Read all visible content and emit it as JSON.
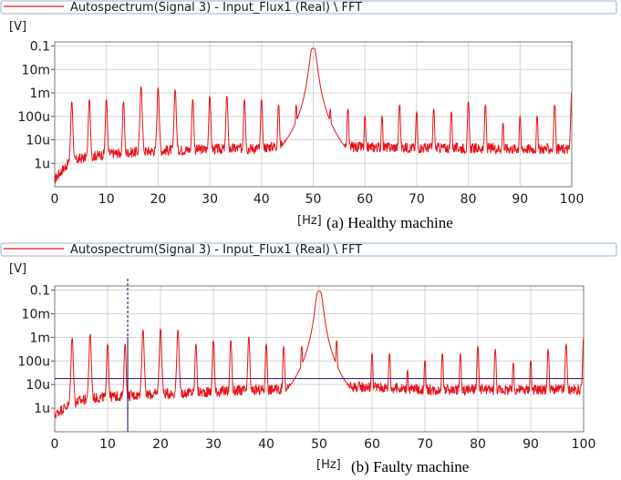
{
  "chart_data": [
    {
      "type": "line",
      "legend": "Autospectrum(Signal 3) - Input_Flux1 (Real) \\ FFT",
      "ylabel": "[V]",
      "xlabel": "[Hz]",
      "caption": "(a) Healthy machine",
      "xlim": [
        0,
        100
      ],
      "ylim": [
        1e-07,
        0.15
      ],
      "yscale": "log",
      "xticks": [
        0,
        10,
        20,
        30,
        40,
        50,
        60,
        70,
        80,
        90,
        100
      ],
      "yticks": [
        {
          "value": 0.1,
          "label": "0.1"
        },
        {
          "value": 0.01,
          "label": "10m"
        },
        {
          "value": 0.001,
          "label": "1m"
        },
        {
          "value": 0.0001,
          "label": "100u"
        },
        {
          "value": 1e-05,
          "label": "10u"
        },
        {
          "value": 1e-06,
          "label": "1u"
        }
      ],
      "grid": true,
      "series": [
        {
          "name": "Autospectrum(Signal 3) - Input_Flux1 (Real) \\ FFT",
          "color": "#e8131b",
          "floor": [
            [
              0,
              2e-07
            ],
            [
              1,
              4e-07
            ],
            [
              3,
              1.2e-06
            ],
            [
              6,
              1.8e-06
            ],
            [
              10,
              2.5e-06
            ],
            [
              20,
              3.5e-06
            ],
            [
              40,
              4.5e-06
            ],
            [
              48,
              8e-06
            ],
            [
              52,
              8e-06
            ],
            [
              55,
              5e-06
            ],
            [
              100,
              4e-06
            ]
          ],
          "peaks": [
            {
              "x": 3.3,
              "y": 0.0004
            },
            {
              "x": 6.7,
              "y": 0.0005
            },
            {
              "x": 10.0,
              "y": 0.0005
            },
            {
              "x": 13.3,
              "y": 0.0004
            },
            {
              "x": 16.7,
              "y": 0.0018
            },
            {
              "x": 20.0,
              "y": 0.0016
            },
            {
              "x": 23.3,
              "y": 0.0013
            },
            {
              "x": 26.7,
              "y": 0.0005
            },
            {
              "x": 30.0,
              "y": 0.0007
            },
            {
              "x": 33.3,
              "y": 0.0007
            },
            {
              "x": 36.7,
              "y": 0.0005
            },
            {
              "x": 40.0,
              "y": 0.0005
            },
            {
              "x": 43.3,
              "y": 0.0003
            },
            {
              "x": 46.7,
              "y": 0.0003
            },
            {
              "x": 50.0,
              "y": 0.08
            },
            {
              "x": 53.3,
              "y": 0.0002
            },
            {
              "x": 56.7,
              "y": 0.0002
            },
            {
              "x": 60.0,
              "y": 0.0001
            },
            {
              "x": 63.3,
              "y": 0.0001
            },
            {
              "x": 66.7,
              "y": 0.0003
            },
            {
              "x": 70.0,
              "y": 0.00015
            },
            {
              "x": 73.3,
              "y": 0.0002
            },
            {
              "x": 76.7,
              "y": 0.00015
            },
            {
              "x": 80.0,
              "y": 0.0004
            },
            {
              "x": 83.3,
              "y": 0.0003
            },
            {
              "x": 86.7,
              "y": 5e-05
            },
            {
              "x": 90.0,
              "y": 0.0001
            },
            {
              "x": 93.3,
              "y": 0.0001
            },
            {
              "x": 96.7,
              "y": 0.0003
            },
            {
              "x": 100.0,
              "y": 0.001
            }
          ]
        }
      ]
    },
    {
      "type": "line",
      "legend": "Autospectrum(Signal 3) - Input_Flux1 (Real) \\ FFT",
      "ylabel": "[V]",
      "xlabel": "[Hz]",
      "caption": "(b) Faulty machine",
      "xlim": [
        0,
        100
      ],
      "ylim": [
        1e-07,
        0.15
      ],
      "yscale": "log",
      "xticks": [
        0,
        10,
        20,
        30,
        40,
        50,
        60,
        70,
        80,
        90,
        100
      ],
      "yticks": [
        {
          "value": 0.1,
          "label": "0.1"
        },
        {
          "value": 0.01,
          "label": "10m"
        },
        {
          "value": 0.001,
          "label": "1m"
        },
        {
          "value": 0.0001,
          "label": "100u"
        },
        {
          "value": 1e-05,
          "label": "10u"
        },
        {
          "value": 1e-06,
          "label": "1u"
        }
      ],
      "grid": true,
      "cursor": {
        "x": 13.8,
        "y": 1.8e-05
      },
      "series": [
        {
          "name": "Autospectrum(Signal 3) - Input_Flux1 (Real) \\ FFT",
          "color": "#e8131b",
          "floor": [
            [
              0,
              5e-07
            ],
            [
              1,
              8e-07
            ],
            [
              3,
              1.5e-06
            ],
            [
              6,
              2.5e-06
            ],
            [
              10,
              3e-06
            ],
            [
              20,
              4e-06
            ],
            [
              30,
              5e-06
            ],
            [
              40,
              6e-06
            ],
            [
              50,
              8e-06
            ],
            [
              60,
              8e-06
            ],
            [
              70,
              6e-06
            ],
            [
              80,
              6e-06
            ],
            [
              100,
              6e-06
            ]
          ],
          "peaks": [
            {
              "x": 3.3,
              "y": 0.0009
            },
            {
              "x": 6.7,
              "y": 0.0013
            },
            {
              "x": 10.0,
              "y": 0.0005
            },
            {
              "x": 13.3,
              "y": 0.0005
            },
            {
              "x": 16.7,
              "y": 0.002
            },
            {
              "x": 20.0,
              "y": 0.0022
            },
            {
              "x": 23.3,
              "y": 0.002
            },
            {
              "x": 26.7,
              "y": 0.0005
            },
            {
              "x": 30.0,
              "y": 0.0007
            },
            {
              "x": 33.3,
              "y": 0.0007
            },
            {
              "x": 36.7,
              "y": 0.001
            },
            {
              "x": 40.0,
              "y": 0.0005
            },
            {
              "x": 43.3,
              "y": 0.0004
            },
            {
              "x": 46.7,
              "y": 0.0004
            },
            {
              "x": 50.0,
              "y": 0.09
            },
            {
              "x": 53.3,
              "y": 0.0007
            },
            {
              "x": 60.0,
              "y": 0.0002
            },
            {
              "x": 63.3,
              "y": 0.0002
            },
            {
              "x": 66.7,
              "y": 4e-05
            },
            {
              "x": 70.0,
              "y": 0.0001
            },
            {
              "x": 73.3,
              "y": 0.0002
            },
            {
              "x": 76.7,
              "y": 0.0002
            },
            {
              "x": 80.0,
              "y": 0.0004
            },
            {
              "x": 83.3,
              "y": 0.0003
            },
            {
              "x": 86.7,
              "y": 8e-05
            },
            {
              "x": 90.0,
              "y": 0.0001
            },
            {
              "x": 93.3,
              "y": 0.0003
            },
            {
              "x": 96.7,
              "y": 0.0005
            },
            {
              "x": 100.0,
              "y": 0.0009
            }
          ]
        }
      ]
    }
  ]
}
